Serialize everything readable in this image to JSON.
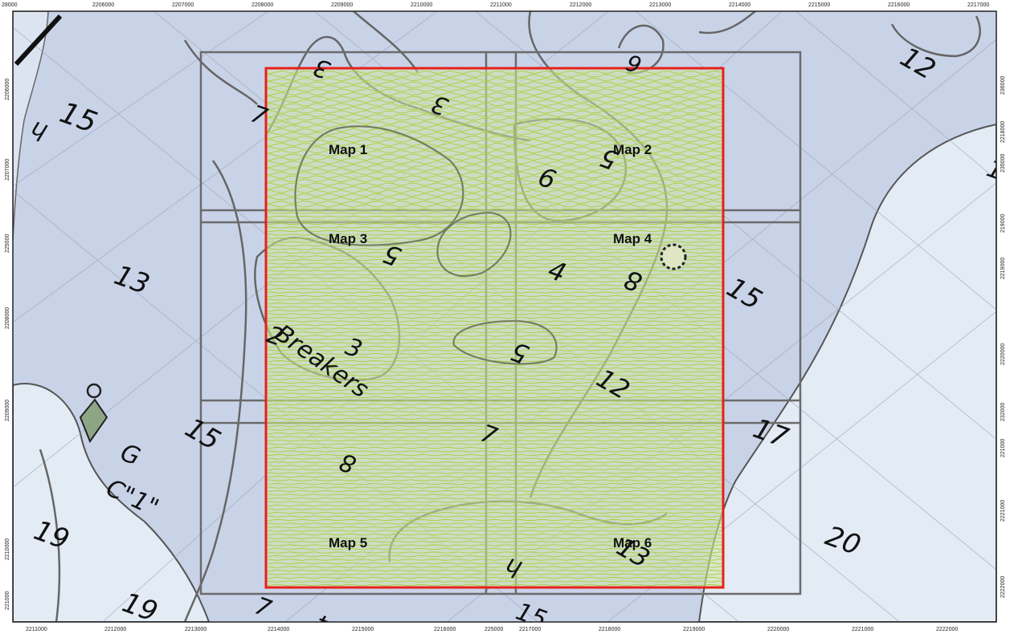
{
  "rulers": {
    "top": [
      "2206000",
      "2207000",
      "2208000",
      "2209000",
      "2210000",
      "2211000",
      "2212000",
      "2213000",
      "2214000",
      "2215000",
      "2216000",
      "2217000"
    ],
    "top_first": "28000",
    "bottom": [
      "2211000",
      "2212000",
      "2213000",
      "2214000",
      "2215000",
      "2216000",
      "225000",
      "2217000",
      "2218000",
      "2219000",
      "2220000",
      "2221000",
      "2222000"
    ],
    "left": [
      "2206000",
      "2207000",
      "225000",
      "2208000",
      "2209000",
      "2210000",
      "221000"
    ],
    "right": [
      "236000",
      "2218000",
      "235000",
      "219000",
      "2219000",
      "2220000",
      "232000",
      "221000",
      "2221000",
      "2222000"
    ]
  },
  "tiles": [
    "Map 1",
    "Map 2",
    "Map 3",
    "Map 4",
    "Map 5",
    "Map 6"
  ],
  "soundings": {
    "d15a": "15",
    "d13": "13",
    "d19a": "19",
    "d19b": "19",
    "d12": "12",
    "d15b": "15",
    "d15c": "15",
    "d17": "17",
    "d20": "20",
    "d3a": "3",
    "d3b": "3",
    "d3c": "3",
    "d6": "6",
    "d5a": "5",
    "d9": "9",
    "d5b": "5",
    "d4": "4",
    "d8a": "8",
    "d5c": "5",
    "d2": "2",
    "d12b": "12",
    "d8b": "8",
    "d7a": "7",
    "d13b": "13",
    "d4b": "4",
    "d7b": "7",
    "d15d": "15",
    "d1": "1",
    "d7c": "7",
    "dh": "h",
    "dh2": "h"
  },
  "features": {
    "breakers": "Breakers",
    "buoy_g": "G",
    "buoy_c": "C\"1\"",
    "buoy_o": "o"
  },
  "colors": {
    "survey_boundary": "#e8201c",
    "survey_lines": "#a8d13c",
    "shallow_water": "#c9d3e8",
    "deep_water": "#e3ebf5",
    "grid": "#666666"
  }
}
